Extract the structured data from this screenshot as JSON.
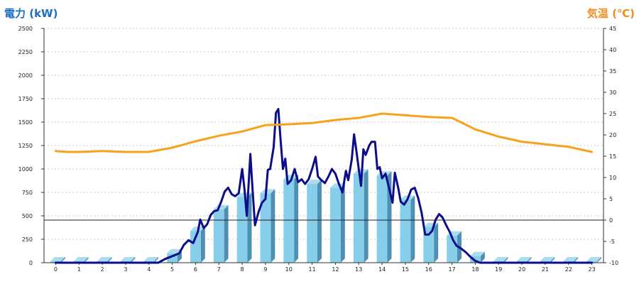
{
  "chart_data": {
    "type": "bar+line",
    "left_axis": {
      "label": "電力 (kW)",
      "color": "#1a6fbf",
      "range": [
        0,
        2500
      ],
      "ticks": [
        "0",
        "250",
        "500",
        "750",
        "1000",
        "1250",
        "1500",
        "1750",
        "2000",
        "2250",
        "2500"
      ]
    },
    "right_axis": {
      "label": "気温 (℃)",
      "color": "#f08c1e",
      "range": [
        -10,
        45
      ],
      "ticks": [
        "-10",
        "-5",
        "0",
        "5",
        "10",
        "15",
        "20",
        "25",
        "30",
        "35",
        "40",
        "45"
      ]
    },
    "x_categories": [
      "0",
      "1",
      "2",
      "3",
      "4",
      "5",
      "6",
      "7",
      "8",
      "9",
      "10",
      "11",
      "12",
      "13",
      "14",
      "15",
      "16",
      "17",
      "18",
      "19",
      "20",
      "21",
      "22",
      "23"
    ],
    "grid": true,
    "series": [
      {
        "kind": "bar",
        "axis": "left",
        "color": "#87ceeb",
        "values": [
          0,
          0,
          0,
          0,
          0,
          100,
          340,
          570,
          700,
          740,
          890,
          840,
          800,
          950,
          930,
          670,
          380,
          290,
          70,
          0,
          0,
          0,
          0,
          0
        ]
      },
      {
        "kind": "line",
        "axis": "left",
        "color": "#0d0d8c",
        "points": [
          [
            0,
            0
          ],
          [
            1,
            0
          ],
          [
            2,
            0
          ],
          [
            3,
            0
          ],
          [
            4,
            0
          ],
          [
            4.4,
            0
          ],
          [
            4.7,
            40
          ],
          [
            5.0,
            70
          ],
          [
            5.3,
            100
          ],
          [
            5.5,
            190
          ],
          [
            5.7,
            240
          ],
          [
            5.9,
            210
          ],
          [
            6.1,
            330
          ],
          [
            6.2,
            460
          ],
          [
            6.35,
            370
          ],
          [
            6.5,
            410
          ],
          [
            6.65,
            510
          ],
          [
            6.8,
            550
          ],
          [
            6.95,
            560
          ],
          [
            7.1,
            650
          ],
          [
            7.25,
            760
          ],
          [
            7.4,
            800
          ],
          [
            7.55,
            730
          ],
          [
            7.7,
            710
          ],
          [
            7.85,
            740
          ],
          [
            8.0,
            1000
          ],
          [
            8.1,
            780
          ],
          [
            8.2,
            500
          ],
          [
            8.35,
            1160
          ],
          [
            8.45,
            760
          ],
          [
            8.55,
            400
          ],
          [
            8.7,
            540
          ],
          [
            8.85,
            640
          ],
          [
            9.0,
            680
          ],
          [
            9.1,
            990
          ],
          [
            9.2,
            1000
          ],
          [
            9.35,
            1230
          ],
          [
            9.45,
            1600
          ],
          [
            9.55,
            1640
          ],
          [
            9.65,
            1300
          ],
          [
            9.75,
            1000
          ],
          [
            9.85,
            1110
          ],
          [
            9.95,
            840
          ],
          [
            10.1,
            880
          ],
          [
            10.25,
            1000
          ],
          [
            10.4,
            860
          ],
          [
            10.55,
            890
          ],
          [
            10.7,
            840
          ],
          [
            10.85,
            890
          ],
          [
            11.0,
            1000
          ],
          [
            11.15,
            1130
          ],
          [
            11.25,
            920
          ],
          [
            11.4,
            880
          ],
          [
            11.55,
            850
          ],
          [
            11.7,
            920
          ],
          [
            11.85,
            1000
          ],
          [
            12.0,
            950
          ],
          [
            12.15,
            840
          ],
          [
            12.3,
            750
          ],
          [
            12.45,
            980
          ],
          [
            12.55,
            880
          ],
          [
            12.7,
            1100
          ],
          [
            12.8,
            1370
          ],
          [
            12.9,
            1190
          ],
          [
            13.0,
            1000
          ],
          [
            13.1,
            820
          ],
          [
            13.2,
            1210
          ],
          [
            13.3,
            1150
          ],
          [
            13.45,
            1250
          ],
          [
            13.55,
            1290
          ],
          [
            13.7,
            1290
          ],
          [
            13.8,
            1000
          ],
          [
            13.9,
            1020
          ],
          [
            14.0,
            900
          ],
          [
            14.15,
            950
          ],
          [
            14.3,
            800
          ],
          [
            14.45,
            640
          ],
          [
            14.55,
            960
          ],
          [
            14.7,
            790
          ],
          [
            14.8,
            650
          ],
          [
            14.95,
            620
          ],
          [
            15.1,
            680
          ],
          [
            15.25,
            780
          ],
          [
            15.4,
            800
          ],
          [
            15.55,
            690
          ],
          [
            15.7,
            530
          ],
          [
            15.85,
            300
          ],
          [
            16.0,
            300
          ],
          [
            16.15,
            340
          ],
          [
            16.3,
            460
          ],
          [
            16.45,
            520
          ],
          [
            16.6,
            480
          ],
          [
            16.75,
            400
          ],
          [
            16.9,
            330
          ],
          [
            17.05,
            240
          ],
          [
            17.2,
            180
          ],
          [
            17.4,
            150
          ],
          [
            17.6,
            110
          ],
          [
            17.8,
            60
          ],
          [
            18.0,
            20
          ],
          [
            18.2,
            0
          ],
          [
            19,
            0
          ],
          [
            20,
            0
          ],
          [
            21,
            0
          ],
          [
            22,
            0
          ],
          [
            23,
            0
          ]
        ]
      },
      {
        "kind": "line",
        "axis": "right",
        "color": "#f7a21b",
        "points": [
          [
            0,
            16.2
          ],
          [
            0.5,
            16.0
          ],
          [
            1,
            16.0
          ],
          [
            2,
            16.2
          ],
          [
            3,
            16.0
          ],
          [
            4,
            16.0
          ],
          [
            5,
            17.0
          ],
          [
            6,
            18.5
          ],
          [
            7,
            19.8
          ],
          [
            8,
            20.8
          ],
          [
            9,
            22.3
          ],
          [
            10,
            22.5
          ],
          [
            11,
            22.8
          ],
          [
            12,
            23.5
          ],
          [
            13,
            24.0
          ],
          [
            14,
            25.0
          ],
          [
            15,
            24.6
          ],
          [
            16,
            24.2
          ],
          [
            17,
            24.0
          ],
          [
            18,
            21.3
          ],
          [
            19,
            19.6
          ],
          [
            20,
            18.4
          ],
          [
            21,
            17.8
          ],
          [
            22,
            17.2
          ],
          [
            23,
            16.0
          ]
        ]
      }
    ]
  }
}
